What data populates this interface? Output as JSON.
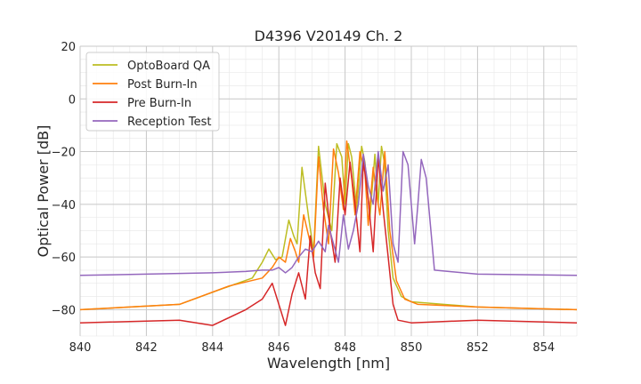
{
  "chart_data": {
    "type": "line",
    "title": "D4396 V20149 Ch. 2",
    "xlabel": "Wavelength [nm]",
    "ylabel": "Optical Power [dB]",
    "xlim": [
      840,
      855
    ],
    "ylim": [
      -90,
      20
    ],
    "xticks": [
      840,
      842,
      844,
      846,
      848,
      850,
      852,
      854
    ],
    "xtick_labels": [
      "840",
      "842",
      "844",
      "846",
      "848",
      "850",
      "852",
      "854"
    ],
    "yticks": [
      20,
      0,
      -20,
      -40,
      -60,
      -80
    ],
    "ytick_labels": [
      "20",
      "0",
      "−20",
      "−40",
      "−60",
      "−80"
    ],
    "grid": true,
    "legend_position": "top-left",
    "series": [
      {
        "name": "OptoBoard QA",
        "color": "#bcbd22",
        "x": [
          840.0,
          843.0,
          844.3,
          845.2,
          845.5,
          845.7,
          845.9,
          846.1,
          846.3,
          846.45,
          846.55,
          846.7,
          846.9,
          847.05,
          847.2,
          847.4,
          847.6,
          847.75,
          847.9,
          848.0,
          848.1,
          848.2,
          848.35,
          848.5,
          848.6,
          848.75,
          848.9,
          849.0,
          849.1,
          849.2,
          849.3,
          849.45,
          849.7,
          850.0,
          852.0,
          855.0
        ],
        "y": [
          -80,
          -78,
          -72,
          -68,
          -62,
          -57,
          -61,
          -60,
          -46,
          -52,
          -55,
          -26,
          -45,
          -58,
          -18,
          -40,
          -50,
          -17,
          -22,
          -40,
          -17,
          -22,
          -42,
          -18,
          -24,
          -45,
          -21,
          -40,
          -18,
          -25,
          -50,
          -68,
          -75,
          -77,
          -79,
          -80
        ]
      },
      {
        "name": "Post Burn-In",
        "color": "#ff7f0e",
        "x": [
          840.0,
          843.0,
          844.5,
          845.5,
          845.8,
          846.0,
          846.2,
          846.35,
          846.5,
          846.6,
          846.75,
          846.9,
          847.05,
          847.2,
          847.35,
          847.5,
          847.65,
          847.8,
          847.95,
          848.05,
          848.2,
          848.3,
          848.45,
          848.6,
          848.7,
          848.85,
          848.95,
          849.05,
          849.2,
          849.35,
          849.55,
          849.8,
          850.2,
          852.0,
          855.0
        ],
        "y": [
          -80,
          -78,
          -71,
          -68,
          -64,
          -60,
          -62,
          -53,
          -58,
          -62,
          -44,
          -52,
          -60,
          -22,
          -42,
          -55,
          -19,
          -28,
          -42,
          -16,
          -30,
          -44,
          -20,
          -28,
          -48,
          -26,
          -36,
          -44,
          -20,
          -50,
          -69,
          -76,
          -78,
          -79,
          -80
        ]
      },
      {
        "name": "Pre Burn-In",
        "color": "#d62728",
        "x": [
          840.0,
          843.0,
          844.0,
          845.0,
          845.5,
          845.8,
          846.0,
          846.2,
          846.4,
          846.6,
          846.8,
          846.95,
          847.1,
          847.25,
          847.4,
          847.55,
          847.7,
          847.85,
          848.0,
          848.15,
          848.3,
          848.45,
          848.55,
          848.7,
          848.85,
          849.0,
          849.15,
          849.3,
          849.45,
          849.6,
          850.0,
          852.0,
          855.0
        ],
        "y": [
          -85,
          -84,
          -86,
          -80,
          -76,
          -70,
          -78,
          -86,
          -74,
          -66,
          -76,
          -52,
          -66,
          -72,
          -32,
          -50,
          -62,
          -30,
          -44,
          -24,
          -40,
          -58,
          -23,
          -38,
          -58,
          -22,
          -42,
          -60,
          -78,
          -84,
          -85,
          -84,
          -85
        ]
      },
      {
        "name": "Reception Test",
        "color": "#9467bd",
        "x": [
          840.0,
          842.0,
          844.0,
          845.0,
          845.5,
          845.8,
          846.0,
          846.2,
          846.4,
          846.6,
          846.8,
          847.0,
          847.2,
          847.4,
          847.5,
          847.65,
          847.8,
          847.95,
          848.1,
          848.25,
          848.4,
          848.55,
          848.7,
          848.85,
          849.0,
          849.15,
          849.3,
          849.45,
          849.6,
          849.75,
          849.9,
          850.1,
          850.2,
          850.3,
          850.45,
          850.7,
          852.0,
          855.0
        ],
        "y": [
          -67,
          -66.5,
          -66,
          -65.5,
          -65,
          -65,
          -64,
          -66,
          -64,
          -60,
          -57,
          -58,
          -54,
          -58,
          -48,
          -55,
          -62,
          -44,
          -57,
          -50,
          -40,
          -21,
          -33,
          -40,
          -20,
          -35,
          -25,
          -55,
          -62,
          -20,
          -25,
          -55,
          -40,
          -23,
          -30,
          -65,
          -66.5,
          -67
        ]
      }
    ]
  }
}
